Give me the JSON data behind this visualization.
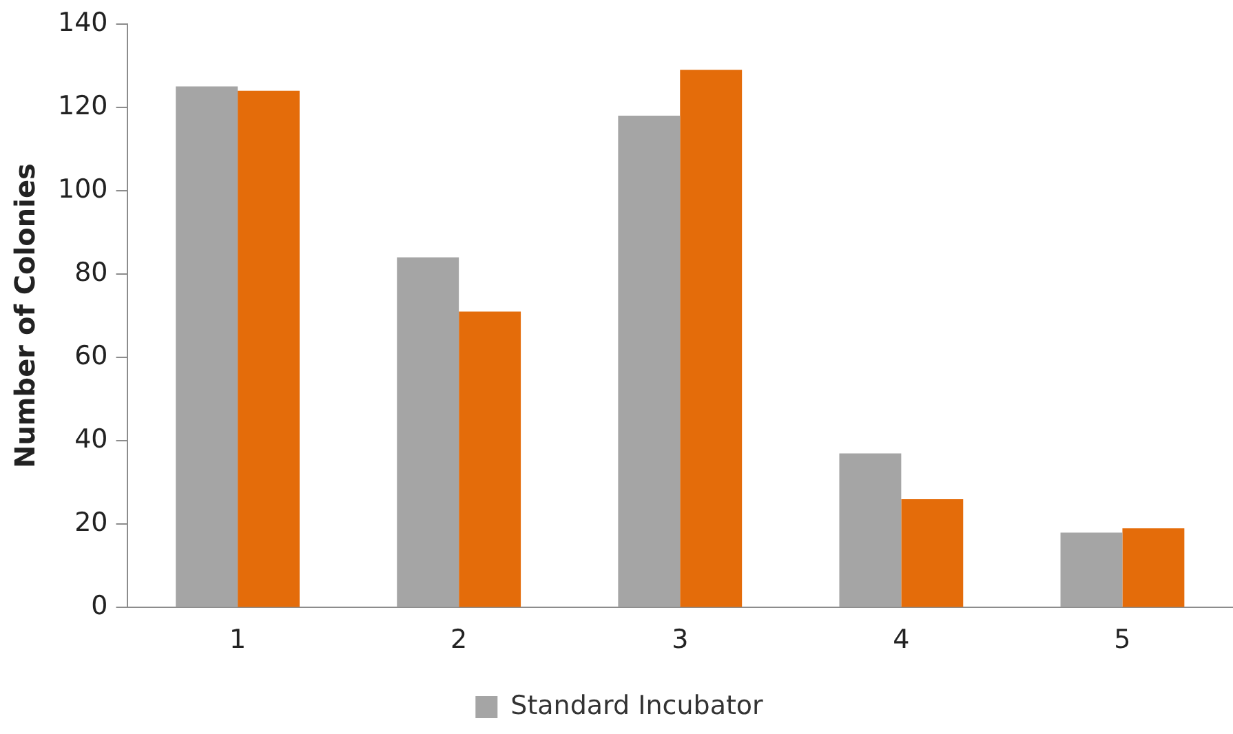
{
  "chart_data": {
    "type": "bar",
    "ylabel": "Number of Colonies",
    "categories": [
      "1",
      "2",
      "3",
      "4",
      "5"
    ],
    "series": [
      {
        "name": "Standard Incubator",
        "color": "#a5a5a5",
        "values": [
          125,
          84,
          118,
          37,
          18
        ]
      },
      {
        "color": "#e46c0a",
        "values": [
          124,
          71,
          129,
          26,
          19
        ]
      }
    ],
    "ylim": [
      0,
      140
    ],
    "yticks": [
      0,
      20,
      40,
      60,
      80,
      100,
      120,
      140
    ],
    "grid": false,
    "legend": "bottom"
  }
}
